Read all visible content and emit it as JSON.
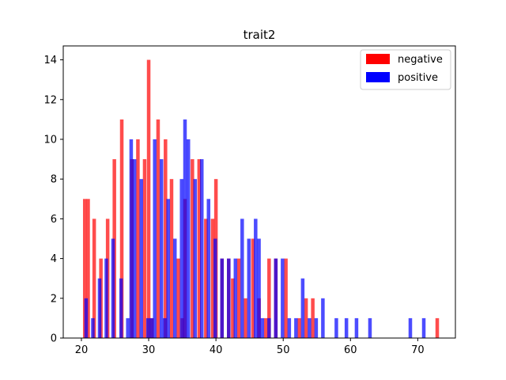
{
  "chart_data": {
    "type": "bar",
    "title": "trait2",
    "xlabel": "",
    "ylabel": "",
    "xlim": [
      17.3,
      75.6
    ],
    "ylim": [
      0,
      14.7
    ],
    "xticks": [
      20,
      30,
      40,
      50,
      60,
      70
    ],
    "yticks": [
      0,
      2,
      4,
      6,
      8,
      10,
      12,
      14
    ],
    "grid": false,
    "legend_position": "top-right",
    "bin_width": 0.53,
    "colors": {
      "negative": "#ff0000",
      "positive": "#0000ff"
    },
    "series": [
      {
        "name": "negative",
        "color": "#ff0000",
        "opacity": 0.7,
        "x": [
          20.5,
          21.0,
          21.9,
          22.9,
          23.9,
          24.9,
          26.0,
          27.5,
          28.4,
          29.4,
          30.0,
          30.5,
          31.4,
          32.5,
          33.4,
          34.4,
          35.0,
          35.4,
          36.5,
          37.5,
          38.5,
          39.5,
          40.0,
          40.9,
          41.9,
          42.5,
          43.4,
          44.4,
          45.5,
          46.4,
          47.4,
          47.9,
          48.9,
          50.4,
          52.4,
          53.4,
          54.4,
          72.9
        ],
        "values": [
          7,
          7,
          6,
          4,
          6,
          9,
          11,
          9,
          10,
          9,
          14,
          1,
          11,
          10,
          8,
          4,
          1,
          7,
          9,
          9,
          6,
          6,
          8,
          4,
          4,
          3,
          4,
          2,
          5,
          2,
          1,
          4,
          4,
          4,
          1,
          2,
          2,
          1
        ]
      },
      {
        "name": "positive",
        "color": "#0000ff",
        "opacity": 0.7,
        "x": [
          20.7,
          21.7,
          22.7,
          23.7,
          24.7,
          25.9,
          26.9,
          27.4,
          27.9,
          28.9,
          29.9,
          30.4,
          30.9,
          31.9,
          32.4,
          32.9,
          33.9,
          34.9,
          35.4,
          35.9,
          36.9,
          37.9,
          38.9,
          39.9,
          40.9,
          41.9,
          42.9,
          43.9,
          44.9,
          45.9,
          46.4,
          46.9,
          47.9,
          48.9,
          49.9,
          50.9,
          51.9,
          52.9,
          53.9,
          54.9,
          55.9,
          57.9,
          59.4,
          60.9,
          62.9,
          68.9,
          70.9
        ],
        "values": [
          2,
          1,
          3,
          4,
          5,
          3,
          1,
          10,
          9,
          8,
          1,
          1,
          10,
          9,
          1,
          7,
          5,
          8,
          11,
          10,
          8,
          9,
          7,
          5,
          4,
          4,
          4,
          6,
          5,
          6,
          5,
          1,
          1,
          4,
          4,
          1,
          1,
          3,
          1,
          1,
          2,
          1,
          1,
          1,
          1,
          1,
          1
        ]
      }
    ],
    "legend": [
      {
        "label": "negative",
        "color": "#ff0000"
      },
      {
        "label": "positive",
        "color": "#0000ff"
      }
    ]
  }
}
